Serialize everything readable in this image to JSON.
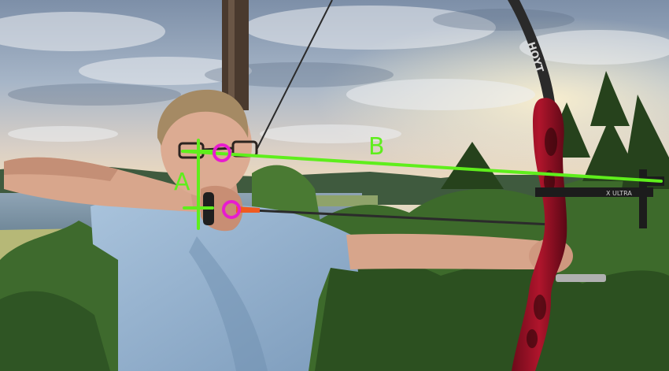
{
  "annotations": {
    "label_a": "A",
    "label_b": "B",
    "line_color": "#5fee1c",
    "marker_color": "#e81ccf"
  },
  "bow": {
    "limb_text": "HOYT",
    "sight_text": "X ULTRA"
  }
}
